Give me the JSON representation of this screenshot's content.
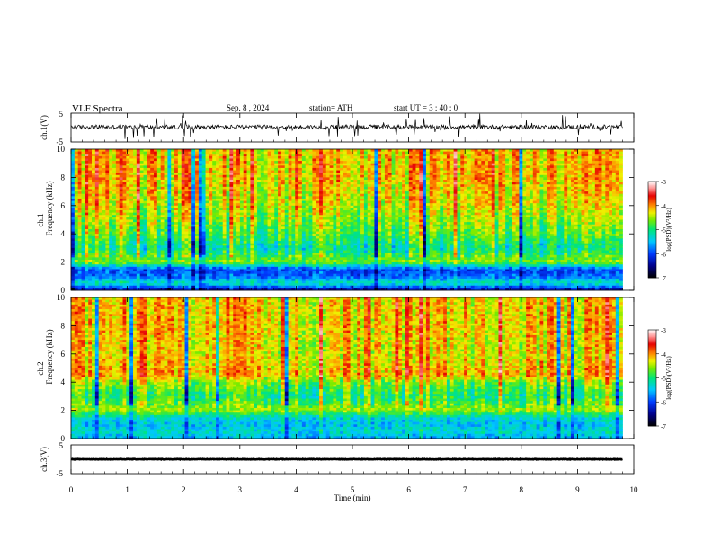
{
  "header": {
    "title": "VLF Spectra",
    "date": "Sep. 8 , 2024",
    "station": "station= ATH",
    "start_ut": "start UT = 3 : 40 : 0"
  },
  "colorbar_ticks": [
    "-3",
    "-4",
    "-5",
    "-6",
    "-7"
  ],
  "colorbar_label": "log(PSD)(V²/Hz)",
  "chart_data": [
    {
      "type": "line",
      "panel": "ch1-waveform",
      "ylabel": "ch.1(V)",
      "ylim": [
        -5,
        5
      ],
      "y_ticks": [
        "5",
        "-5"
      ],
      "xlim": [
        0,
        10
      ],
      "baseline": 0.2,
      "noise_amplitude": 1.5,
      "color": "#000000"
    },
    {
      "type": "heatmap",
      "panel": "ch1-spectrogram",
      "ylabel": "ch.1\nFrequency (kHz)",
      "ylabel_line1": "ch.1",
      "ylabel_line2": "Frequency (kHz)",
      "ylim": [
        0,
        10
      ],
      "y_ticks": [
        "0",
        "2",
        "4",
        "6",
        "8",
        "10"
      ],
      "xlim": [
        0,
        9.8
      ],
      "color_scale": {
        "min": -7,
        "max": -3,
        "label": "log(PSD)(V²/Hz)"
      },
      "frequency_profile_kHz": [
        {
          "f": 0.0,
          "log_psd": -6.5
        },
        {
          "f": 0.5,
          "log_psd": -5.2
        },
        {
          "f": 1.0,
          "log_psd": -5.9
        },
        {
          "f": 1.5,
          "log_psd": -6.0
        },
        {
          "f": 2.0,
          "log_psd": -4.6
        },
        {
          "f": 3.0,
          "log_psd": -5.2
        },
        {
          "f": 4.0,
          "log_psd": -4.8
        },
        {
          "f": 6.0,
          "log_psd": -4.4
        },
        {
          "f": 8.0,
          "log_psd": -4.2
        },
        {
          "f": 10.0,
          "log_psd": -4.2
        }
      ]
    },
    {
      "type": "heatmap",
      "panel": "ch2-spectrogram",
      "ylabel_line1": "ch.2",
      "ylabel_line2": "Frequency (kHz)",
      "ylim": [
        0,
        10
      ],
      "y_ticks": [
        "0",
        "2",
        "4",
        "6",
        "8",
        "10"
      ],
      "xlim": [
        0,
        9.8
      ],
      "color_scale": {
        "min": -7,
        "max": -3,
        "label": "log(PSD)(V²/Hz)"
      },
      "frequency_profile_kHz": [
        {
          "f": 0.0,
          "log_psd": -5.6
        },
        {
          "f": 0.5,
          "log_psd": -5.3
        },
        {
          "f": 1.0,
          "log_psd": -5.5
        },
        {
          "f": 1.5,
          "log_psd": -5.3
        },
        {
          "f": 2.0,
          "log_psd": -4.5
        },
        {
          "f": 3.0,
          "log_psd": -5.0
        },
        {
          "f": 4.0,
          "log_psd": -4.6
        },
        {
          "f": 4.5,
          "log_psd": -4.1
        },
        {
          "f": 6.0,
          "log_psd": -4.3
        },
        {
          "f": 8.0,
          "log_psd": -4.2
        },
        {
          "f": 10.0,
          "log_psd": -4.2
        }
      ]
    },
    {
      "type": "line",
      "panel": "ch3-waveform",
      "ylabel": "ch.3(V)",
      "ylim": [
        -5,
        5
      ],
      "y_ticks": [
        "5",
        "-5"
      ],
      "xlim": [
        0,
        10
      ],
      "baseline": 0.0,
      "noise_amplitude": 0.2,
      "color": "#000000",
      "xlabel": "Time  (min)",
      "x_ticks": [
        "0",
        "1",
        "2",
        "3",
        "4",
        "5",
        "6",
        "7",
        "8",
        "9",
        "10"
      ]
    }
  ]
}
